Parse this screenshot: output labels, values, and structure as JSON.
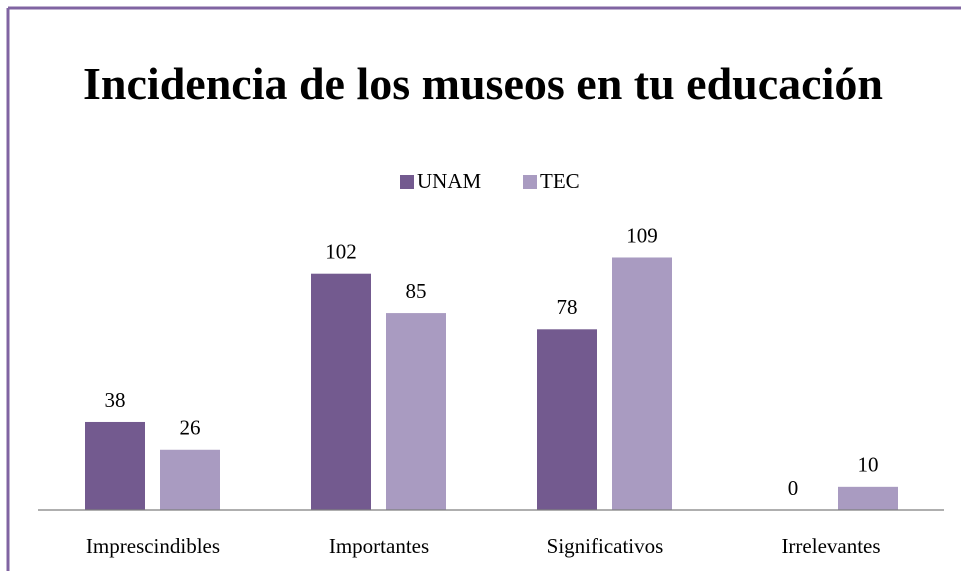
{
  "chart_data": {
    "type": "bar",
    "title": "Incidencia de los museos en tu educación",
    "categories": [
      "Imprescindibles",
      "Importantes",
      "Significativos",
      "Irrelevantes"
    ],
    "series": [
      {
        "name": "UNAM",
        "color": "#735a8f",
        "values": [
          38,
          102,
          78,
          0
        ]
      },
      {
        "name": "TEC",
        "color": "#a99bc1",
        "values": [
          26,
          85,
          109,
          10
        ]
      }
    ],
    "ylim": [
      0,
      120
    ],
    "legend": "top",
    "grid": false
  }
}
